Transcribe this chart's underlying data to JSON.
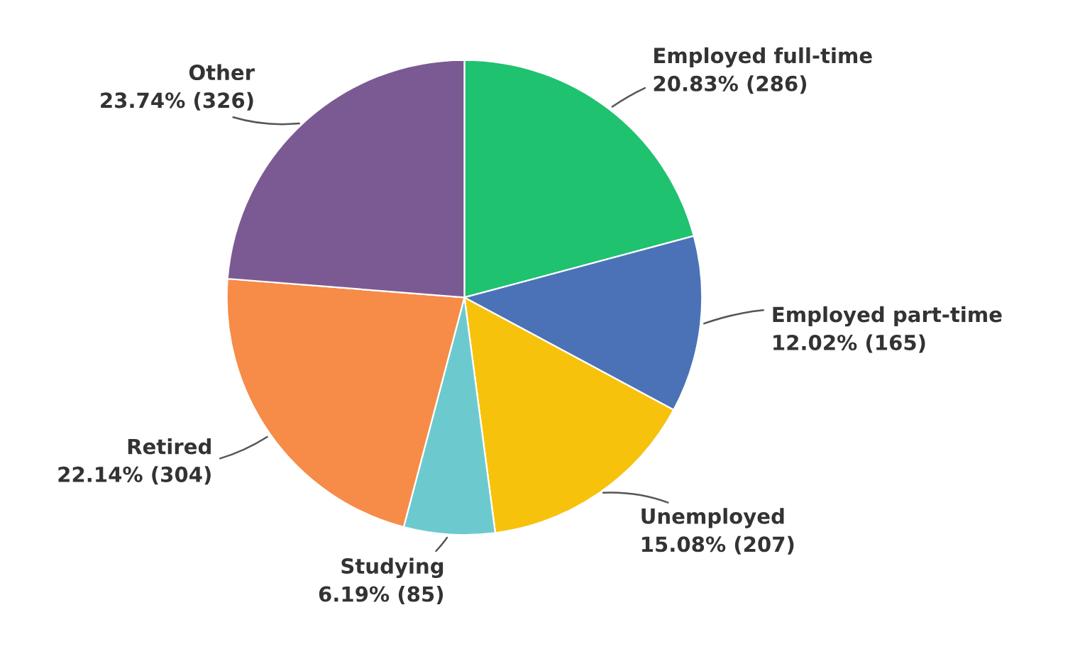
{
  "chart_data": {
    "type": "pie",
    "categories": [
      "Employed full-time",
      "Employed part-time",
      "Unemployed",
      "Studying",
      "Retired",
      "Other"
    ],
    "values": [
      286,
      165,
      207,
      85,
      304,
      326
    ],
    "value_labels": [
      "20.83% (286)",
      "12.02% (165)",
      "15.08% (207)",
      "6.19% (85)",
      "22.14% (304)",
      "23.74% (326)"
    ],
    "colors": [
      "#1fc26f",
      "#4b72b6",
      "#f7c20c",
      "#6ccacf",
      "#f78b48",
      "#7b5a94"
    ],
    "legend": false
  }
}
